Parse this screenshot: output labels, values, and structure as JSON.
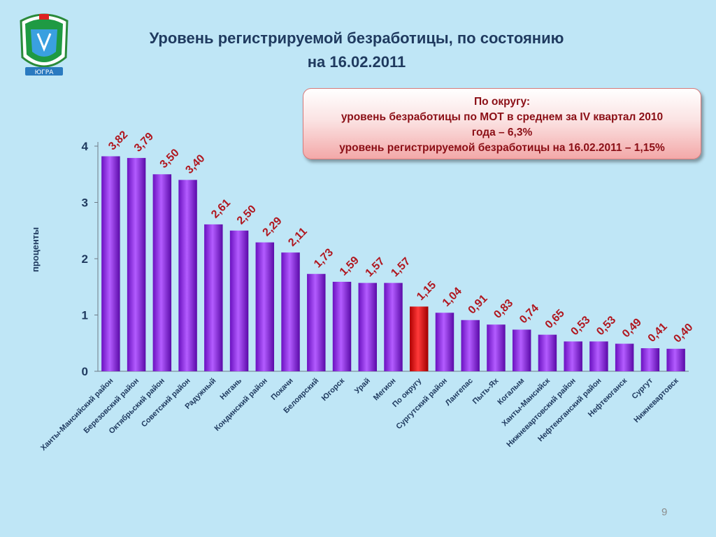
{
  "header": {
    "title_line1": "Уровень регистрируемой безработицы, по состоянию",
    "title_line2": "на 16.02.2011"
  },
  "emblem": {
    "text": "ЮГРА",
    "icon": "coat-of-arms-icon"
  },
  "info_box": {
    "line1": "По округу:",
    "line2": "уровень безработицы по МОТ в среднем за IV квартал 2010",
    "line3": "года – 6,3%",
    "line4": "уровень регистрируемой безработицы на 16.02.2011  – 1,15%"
  },
  "page_number": "9",
  "colors": {
    "bar": "#8a2be2",
    "bar_highlight": "#e00000",
    "value_label": "#b0171f",
    "axis_text": "#1f3a5f",
    "background": "#bfe6f6"
  },
  "chart_data": {
    "type": "bar",
    "title": "Уровень регистрируемой безработицы, по состоянию на 16.02.2011",
    "ylabel": "проценты",
    "xlabel": "",
    "ylim": [
      0,
      4
    ],
    "yticks": [
      0,
      1,
      2,
      3,
      4
    ],
    "grid": false,
    "legend": "none",
    "highlight_category": "По округу",
    "categories": [
      "Ханты-Мансийский район",
      "Березовский район",
      "Октябрьский район",
      "Советский район",
      "Радужный",
      "Нягань",
      "Кондинский район",
      "Покачи",
      "Белоярский",
      "Югорск",
      "Урай",
      "Мегион",
      "По округу",
      "Сургутский район",
      "Лангепас",
      "Пыть-Ях",
      "Когалым",
      "Ханты-Мансийск",
      "Нижневартовский район",
      "Нефтеюганский район",
      "Нефтеюганск",
      "Сургут",
      "Нижневартовск"
    ],
    "values": [
      3.82,
      3.79,
      3.5,
      3.4,
      2.61,
      2.5,
      2.29,
      2.11,
      1.73,
      1.59,
      1.57,
      1.57,
      1.15,
      1.04,
      0.91,
      0.83,
      0.74,
      0.65,
      0.53,
      0.53,
      0.49,
      0.41,
      0.4
    ],
    "value_labels": [
      "3,82",
      "3,79",
      "3,50",
      "3,40",
      "2,61",
      "2,50",
      "2,29",
      "2,11",
      "1,73",
      "1,59",
      "1,57",
      "1,57",
      "1,15",
      "1,04",
      "0,91",
      "0,83",
      "0,74",
      "0,65",
      "0,53",
      "0,53",
      "0,49",
      "0,41",
      "0,40"
    ]
  }
}
